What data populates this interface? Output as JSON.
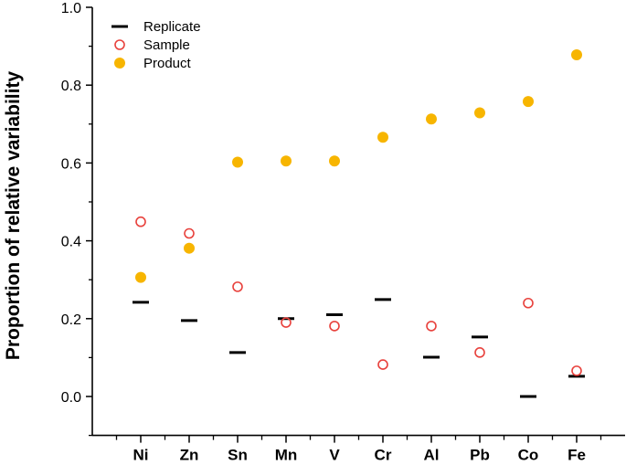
{
  "chart_data": {
    "type": "scatter",
    "title": "",
    "xlabel": "",
    "ylabel": "Proportion of relative variability",
    "categories": [
      "Ni",
      "Zn",
      "Sn",
      "Mn",
      "V",
      "Cr",
      "Al",
      "Pb",
      "Co",
      "Fe"
    ],
    "ylim": [
      -0.1,
      1.0
    ],
    "yticks": [
      "0.0",
      "0.2",
      "0.4",
      "0.6",
      "0.8",
      "1.0"
    ],
    "grid": false,
    "legend_position": "top-left",
    "series": [
      {
        "name": "Replicate",
        "marker": "dash",
        "color": "#000000",
        "values": [
          0.242,
          0.195,
          0.113,
          0.2,
          0.21,
          0.249,
          0.101,
          0.153,
          0.0,
          0.052
        ]
      },
      {
        "name": "Sample",
        "marker": "open-circle",
        "color": "#e8413c",
        "values": [
          0.449,
          0.419,
          0.282,
          0.19,
          0.181,
          0.082,
          0.181,
          0.113,
          0.24,
          0.066
        ]
      },
      {
        "name": "Product",
        "marker": "filled-circle",
        "color": "#f7b500",
        "values": [
          0.306,
          0.381,
          0.602,
          0.605,
          0.605,
          0.666,
          0.713,
          0.729,
          0.758,
          0.878
        ]
      }
    ]
  }
}
